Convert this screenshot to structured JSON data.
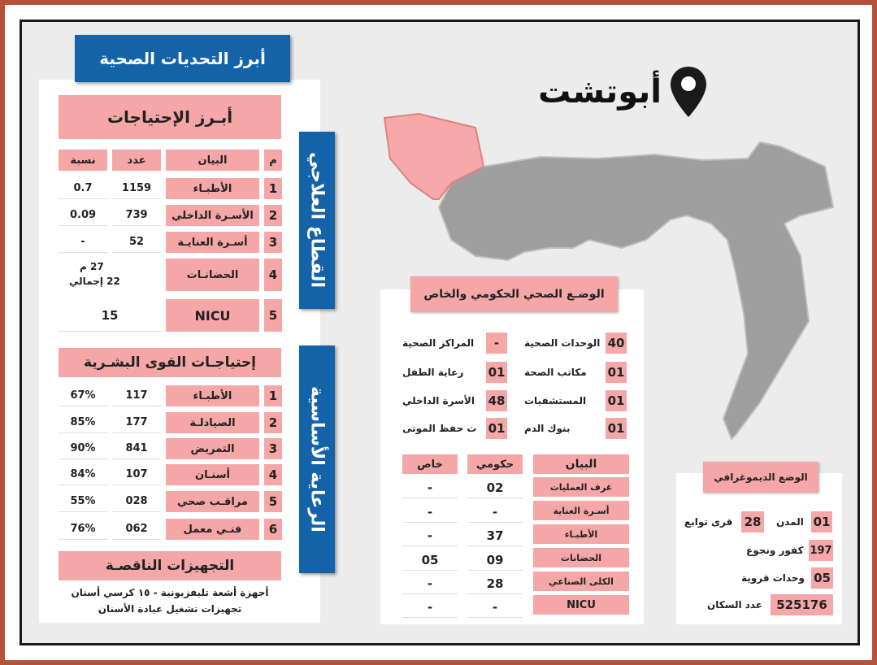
{
  "city": "أبوتشت",
  "left_title": "أبرز التحديات الصحية",
  "sector_treatment": "القطاع العلاجي",
  "sector_primary": "الرعاية الأساسية",
  "needs": {
    "title": "أبـرز الإحتياجات",
    "headers": [
      "م",
      "البيان",
      "عدد",
      "نسبة"
    ],
    "rows": [
      {
        "n": "1",
        "label": "الأطبـاء",
        "count": "1159",
        "pct": "0.7"
      },
      {
        "n": "2",
        "label": "الأسـرة الداخلي",
        "count": "739",
        "pct": "0.09"
      },
      {
        "n": "3",
        "label": "أسـرة العنايـة",
        "count": "52",
        "pct": "-"
      },
      {
        "n": "4",
        "label": "الحضانـات",
        "c1": "27 م",
        "c2": "22 إجمالي"
      },
      {
        "n": "5",
        "label": "NICU",
        "count": "15"
      }
    ]
  },
  "staff": {
    "title": "إحتياجـات القوى البشـرية",
    "rows": [
      {
        "n": "1",
        "label": "الأطبـاء",
        "count": "117",
        "pct": "67%"
      },
      {
        "n": "2",
        "label": "الصيادلـة",
        "count": "177",
        "pct": "85%"
      },
      {
        "n": "3",
        "label": "التمريض",
        "count": "841",
        "pct": "90%"
      },
      {
        "n": "4",
        "label": "أسنـان",
        "count": "107",
        "pct": "84%"
      },
      {
        "n": "5",
        "label": "مراقـب صحي",
        "count": "028",
        "pct": "55%"
      },
      {
        "n": "6",
        "label": "فنـي معمل",
        "count": "062",
        "pct": "76%"
      }
    ]
  },
  "equipment": {
    "title": "التجهيزات الناقصـة",
    "line1": "أجهزة أشعة تليفزيونية - ١٥ كرسي أسنان",
    "line2": "تجهيزات تشغيل عيادة الأسنان"
  },
  "health_status": {
    "title": "الوضـع الصحي الحكومي والخاص",
    "items_right": [
      {
        "value": "40",
        "label": "الوحدات الصحية"
      },
      {
        "value": "01",
        "label": "مكاتب الصحة"
      },
      {
        "value": "01",
        "label": "المستشفيات"
      },
      {
        "value": "01",
        "label": "بنوك الدم"
      }
    ],
    "items_left": [
      {
        "value": "-",
        "label": "المراكز الصحية"
      },
      {
        "value": "01",
        "label": "رعاية الطفل"
      },
      {
        "value": "48",
        "label": "الأسرة الداخلي"
      },
      {
        "value": "01",
        "label": "ث حفظ الموتى"
      }
    ],
    "headers": [
      "البيان",
      "حكومي",
      "خاص"
    ],
    "rows": [
      {
        "label": "غرف العمليات",
        "gov": "02",
        "priv": "-"
      },
      {
        "label": "أسـرة العناية",
        "gov": "-",
        "priv": "-"
      },
      {
        "label": "الأطبـاء",
        "gov": "37",
        "priv": "-"
      },
      {
        "label": "الحضانات",
        "gov": "09",
        "priv": "05"
      },
      {
        "label": "الكلى الصناعي",
        "gov": "28",
        "priv": "-"
      },
      {
        "label": "NICU",
        "gov": "-",
        "priv": "-"
      }
    ]
  },
  "demographic": {
    "title": "الوضع الديموغرافي",
    "cities_value": "01",
    "cities_label": "المدن",
    "villages_value": "28",
    "villages_label": "قرى توابع",
    "hamlets_value": "197",
    "hamlets_label": "كفور ونجوع",
    "units_value": "05",
    "units_label": "وحدات قروية",
    "pop_value": "525176",
    "pop_label": "عدد السكان"
  },
  "colors": {
    "pink": "#f5a6a6",
    "blue": "#1463a8",
    "gray_map": "#9e9e9e",
    "highlight": "#f7a8a8",
    "frame": "#b5533a"
  },
  "icons": [
    "location-pin-icon"
  ]
}
